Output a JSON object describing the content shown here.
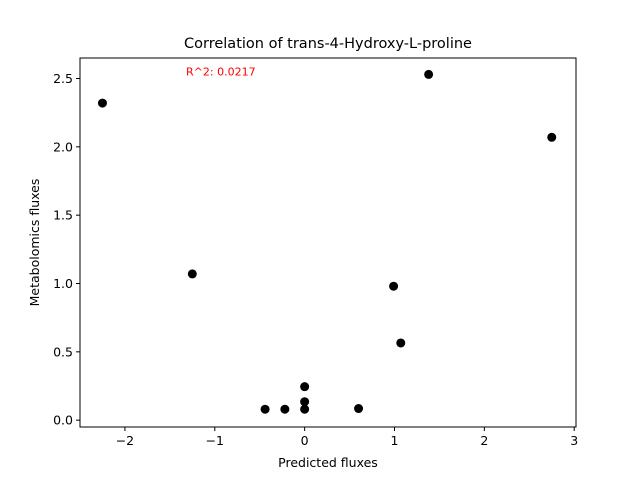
{
  "chart_data": {
    "type": "scatter",
    "title": "Correlation of trans-4-Hydroxy-L-proline",
    "xlabel": "Predicted fluxes",
    "ylabel": "Metabolomics fluxes",
    "xlim": [
      -2.5,
      3.02
    ],
    "ylim": [
      -0.05,
      2.65
    ],
    "xticks": [
      -2,
      -1,
      0,
      1,
      2,
      3
    ],
    "xtick_labels": [
      "−2",
      "−1",
      "0",
      "1",
      "2",
      "3"
    ],
    "yticks": [
      0.0,
      0.5,
      1.0,
      1.5,
      2.0,
      2.5
    ],
    "ytick_labels": [
      "0.0",
      "0.5",
      "1.0",
      "1.5",
      "2.0",
      "2.5"
    ],
    "grid": false,
    "annotation": {
      "text": "R^2: 0.0217",
      "color": "#ff0000",
      "x": -1.32,
      "y": 2.55
    },
    "marker_color": "#000000",
    "points": [
      {
        "x": -2.25,
        "y": 2.32
      },
      {
        "x": -1.25,
        "y": 1.07
      },
      {
        "x": -0.44,
        "y": 0.08
      },
      {
        "x": -0.22,
        "y": 0.08
      },
      {
        "x": 0.0,
        "y": 0.245
      },
      {
        "x": 0.0,
        "y": 0.135
      },
      {
        "x": 0.0,
        "y": 0.08
      },
      {
        "x": 0.6,
        "y": 0.085
      },
      {
        "x": 0.99,
        "y": 0.98
      },
      {
        "x": 1.07,
        "y": 0.565
      },
      {
        "x": 1.38,
        "y": 2.53
      },
      {
        "x": 2.75,
        "y": 2.07
      }
    ]
  }
}
